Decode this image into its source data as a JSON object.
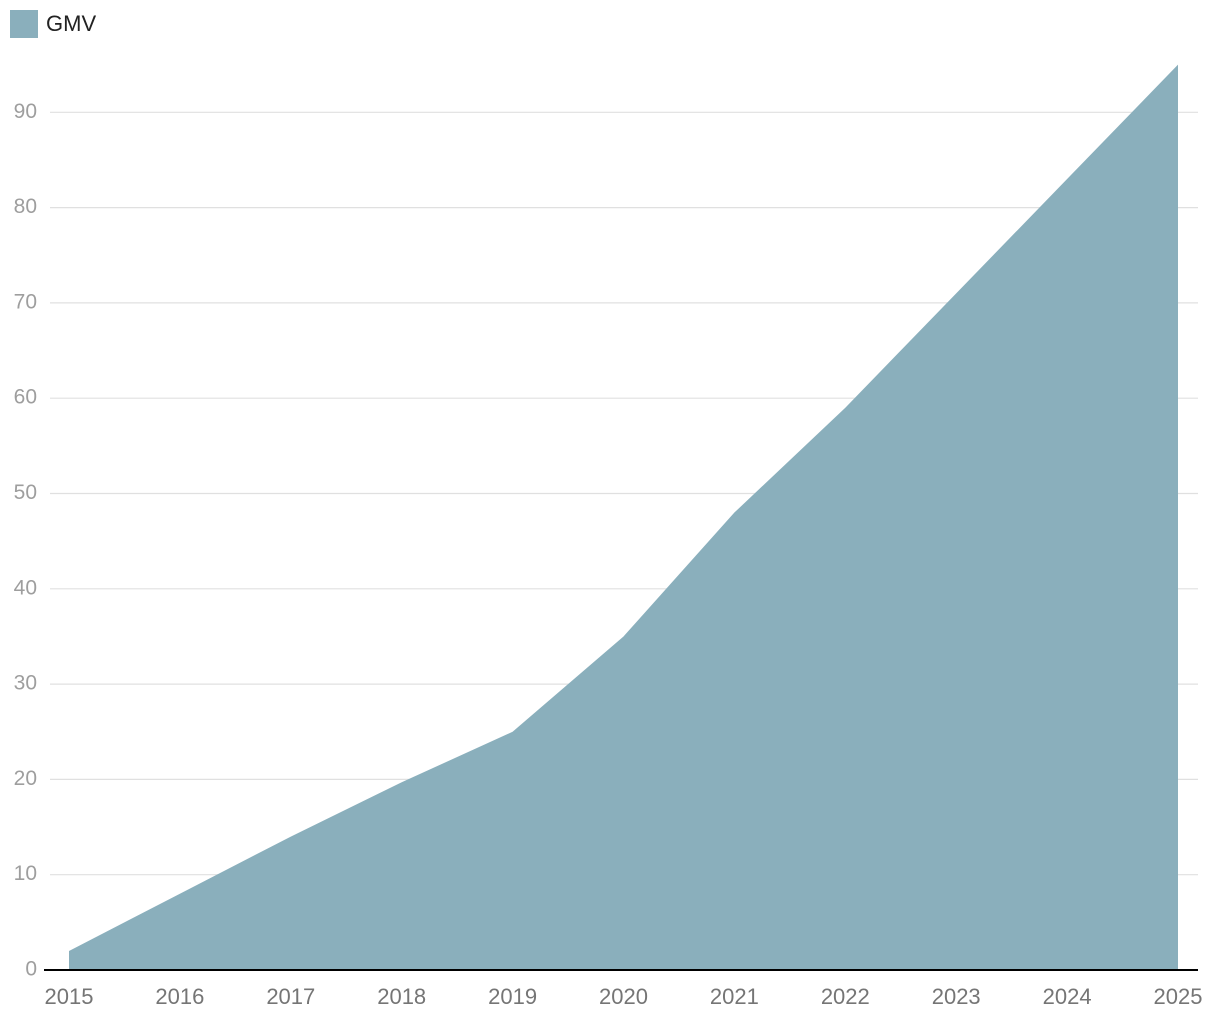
{
  "chart_data": {
    "type": "area",
    "title": "",
    "xlabel": "",
    "ylabel": "",
    "x": [
      "2015",
      "2016",
      "2017",
      "2018",
      "2019",
      "2020",
      "2021",
      "2022",
      "2023",
      "2024",
      "2025"
    ],
    "series": [
      {
        "name": "GMV",
        "color": "#8aafbc",
        "values": [
          2,
          8,
          14,
          19.7,
          25,
          35,
          48,
          59,
          71,
          83,
          95
        ]
      }
    ],
    "ylim": [
      0,
      95
    ],
    "yticks": [
      0,
      10,
      20,
      30,
      40,
      50,
      60,
      70,
      80,
      90
    ],
    "grid": true,
    "legend_position": "top-left"
  }
}
